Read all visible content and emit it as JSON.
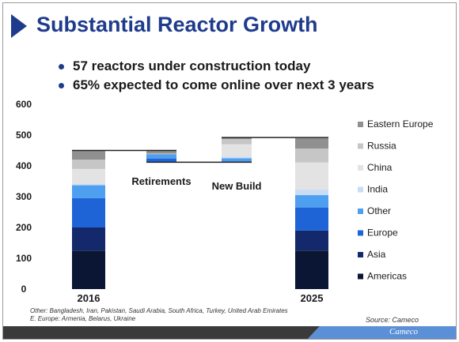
{
  "title": "Substantial Reactor Growth",
  "bullets": [
    "57 reactors under construction today",
    "65% expected to come online over next 3 years"
  ],
  "chart_data": {
    "type": "bar",
    "stacked": true,
    "waterfall": true,
    "categories": [
      "2016",
      "Retirements",
      "New Build",
      "2025"
    ],
    "y_ticks": [
      0,
      100,
      200,
      300,
      400,
      500,
      600
    ],
    "ylim": [
      0,
      600
    ],
    "grid": false,
    "legend_position": "right",
    "series": [
      {
        "name": "Americas",
        "color": "#0b1634",
        "values": [
          125,
          0,
          0,
          125
        ]
      },
      {
        "name": "Asia",
        "color": "#14296b",
        "values": [
          75,
          0,
          0,
          65
        ]
      },
      {
        "name": "Europe",
        "color": "#1f64d6",
        "values": [
          95,
          12,
          3,
          75
        ]
      },
      {
        "name": "Other",
        "color": "#4f9ff0",
        "values": [
          42,
          14,
          10,
          40
        ]
      },
      {
        "name": "India",
        "color": "#c8ddf4",
        "values": [
          5,
          0,
          5,
          18
        ]
      },
      {
        "name": "China",
        "color": "#e3e3e3",
        "values": [
          48,
          0,
          40,
          88
        ]
      },
      {
        "name": "Russia",
        "color": "#c6c6c6",
        "values": [
          30,
          2,
          17,
          45
        ]
      },
      {
        "name": "Eastern Europe",
        "color": "#909090",
        "values": [
          30,
          10,
          5,
          34
        ]
      }
    ],
    "bar_labels": [
      "Retirements",
      "New Build"
    ]
  },
  "footnote": {
    "line1": "Other: Bangladesh, Iran, Pakistan, Saudi Arabia, South Africa, Turkey, United Arab Emirates",
    "line2": "E. Europe: Armenia, Belarus, Ukraine"
  },
  "source": "Source: Cameco",
  "brand": "Cameco",
  "colors": {
    "title": "#1f3b8c",
    "footer_dark": "#3a3a3a",
    "footer_blue": "#5b8fd6"
  }
}
